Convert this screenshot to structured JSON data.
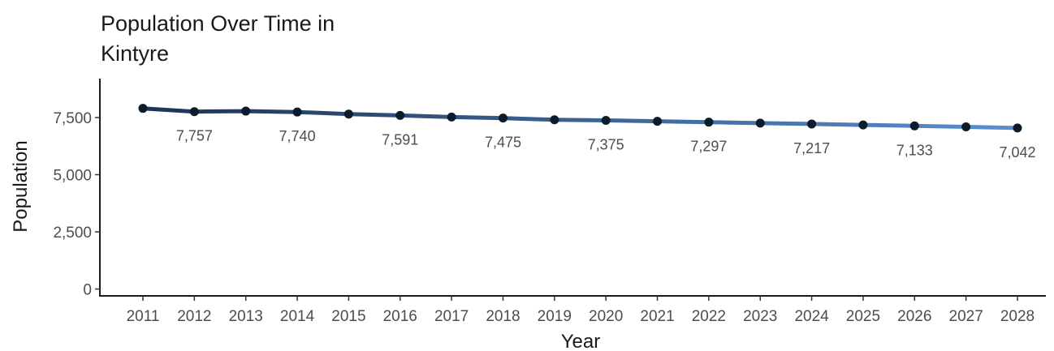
{
  "chart_data": {
    "type": "line",
    "title_line1": "Population Over Time in",
    "title_line2": "Kintyre",
    "xlabel": "Year",
    "ylabel": "Population",
    "x": [
      2011,
      2012,
      2013,
      2014,
      2015,
      2016,
      2017,
      2018,
      2019,
      2020,
      2021,
      2022,
      2023,
      2024,
      2025,
      2026,
      2027,
      2028
    ],
    "x_tick_labels": [
      "2011",
      "2012",
      "2013",
      "2014",
      "2015",
      "2016",
      "2017",
      "2018",
      "2019",
      "2020",
      "2021",
      "2022",
      "2023",
      "2024",
      "2025",
      "2026",
      "2027",
      "2028"
    ],
    "values": [
      7900,
      7757,
      7780,
      7740,
      7650,
      7591,
      7520,
      7475,
      7400,
      7375,
      7335,
      7297,
      7255,
      7217,
      7175,
      7133,
      7090,
      7042
    ],
    "data_labels": [
      {
        "year": 2012,
        "text": "7,757"
      },
      {
        "year": 2014,
        "text": "7,740"
      },
      {
        "year": 2016,
        "text": "7,591"
      },
      {
        "year": 2018,
        "text": "7,475"
      },
      {
        "year": 2020,
        "text": "7,375"
      },
      {
        "year": 2022,
        "text": "7,297"
      },
      {
        "year": 2024,
        "text": "7,217"
      },
      {
        "year": 2026,
        "text": "7,133"
      },
      {
        "year": 2028,
        "text": "7,042"
      }
    ],
    "y_ticks": [
      0,
      2500,
      5000,
      7500
    ],
    "y_tick_labels": [
      "0",
      "2,500",
      "5,000",
      "7,500"
    ],
    "ylim": [
      -300,
      9200
    ],
    "grid": false,
    "colors": {
      "line_start": "#1b3556",
      "line_end": "#5b8fd0",
      "point": "#0d1b2a",
      "axis": "#1a1a1a"
    }
  }
}
